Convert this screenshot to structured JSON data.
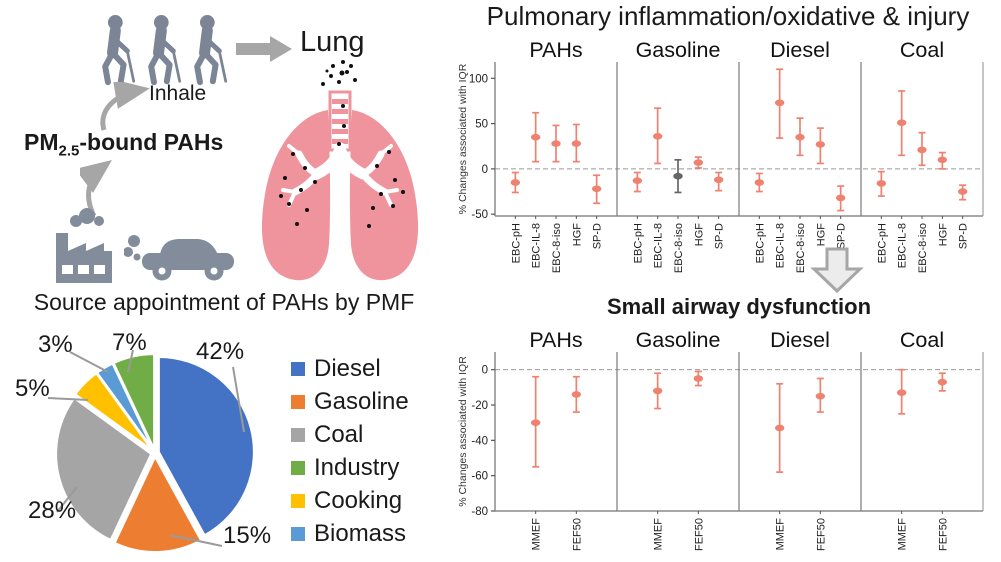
{
  "colors": {
    "salmon": "#EF8170",
    "gray_marker": "#666666",
    "icon_gray": "#7C8595",
    "machine_gray": "#838C9B",
    "arrow_gray": "#A6A6A6",
    "lung_pink": "#EF949C",
    "axis_gray": "#8C8C8C",
    "dash_gray": "#999999"
  },
  "left_panel": {
    "inhale_label": "Inhale",
    "pm_label_base": "PM",
    "pm_label_sub": "2.5",
    "pm_label_rest": "-bound PAHs",
    "lung_label": "Lung"
  },
  "chart_data": [
    {
      "type": "pie",
      "title": "Source appointment of PAHs by PMF",
      "labels": [
        "Diesel",
        "Gasoline",
        "Coal",
        "Cooking",
        "Biomass",
        "Industry"
      ],
      "values": [
        42,
        15,
        28,
        5,
        3,
        7
      ],
      "value_labels": [
        "42%",
        "15%",
        "28%",
        "5%",
        "3%",
        "7%"
      ],
      "slice_colors": [
        "#4472C4",
        "#ED7D31",
        "#A5A5A5",
        "#FFC000",
        "#5B9BD5",
        "#70AD47"
      ],
      "start_angle_deg": -90,
      "direction": "clockwise",
      "legend": [
        {
          "label": "Diesel",
          "color": "#4472C4"
        },
        {
          "label": "Gasoline",
          "color": "#ED7D31"
        },
        {
          "label": "Coal",
          "color": "#A5A5A5"
        },
        {
          "label": "Industry",
          "color": "#70AD47"
        },
        {
          "label": "Cooking",
          "color": "#FFC000"
        },
        {
          "label": "Biomass",
          "color": "#5B9BD5"
        }
      ]
    },
    {
      "type": "errorbar",
      "title": "Pulmonary inflammation/oxidative & injury",
      "ylabel": "% Changes associated with IQR",
      "yticks": [
        100,
        50,
        0,
        -50
      ],
      "ylim": [
        -52,
        118
      ],
      "zero_dashed": true,
      "panels": [
        {
          "name": "PAHs",
          "points": [
            {
              "label": "EBC-pH",
              "value": -15,
              "lo": -26,
              "hi": -4
            },
            {
              "label": "EBC-IL-8",
              "value": 35,
              "lo": 8,
              "hi": 62
            },
            {
              "label": "EBC-8-iso",
              "value": 28,
              "lo": 8,
              "hi": 48
            },
            {
              "label": "HGF",
              "value": 28,
              "lo": 8,
              "hi": 49
            },
            {
              "label": "SP-D",
              "value": -22,
              "lo": -38,
              "hi": -7
            }
          ]
        },
        {
          "name": "Gasoline",
          "points": [
            {
              "label": "EBC-pH",
              "value": -13,
              "lo": -25,
              "hi": -4
            },
            {
              "label": "EBC-IL-8",
              "value": 36,
              "lo": 6,
              "hi": 67
            },
            {
              "label": "EBC-8-iso",
              "value": -8,
              "lo": -26,
              "hi": 10,
              "color": "gray"
            },
            {
              "label": "HGF",
              "value": 7,
              "lo": 1,
              "hi": 13
            },
            {
              "label": "SP-D",
              "value": -12,
              "lo": -24,
              "hi": -4
            }
          ]
        },
        {
          "name": "Diesel",
          "points": [
            {
              "label": "EBC-pH",
              "value": -15,
              "lo": -25,
              "hi": -5
            },
            {
              "label": "EBC-IL-8",
              "value": 73,
              "lo": 34,
              "hi": 110
            },
            {
              "label": "EBC-8-iso",
              "value": 35,
              "lo": 15,
              "hi": 56
            },
            {
              "label": "HGF",
              "value": 27,
              "lo": 6,
              "hi": 45
            },
            {
              "label": "SP-D",
              "value": -32,
              "lo": -46,
              "hi": -19
            }
          ]
        },
        {
          "name": "Coal",
          "points": [
            {
              "label": "EBC-pH",
              "value": -16,
              "lo": -30,
              "hi": -3
            },
            {
              "label": "EBC-IL-8",
              "value": 51,
              "lo": 15,
              "hi": 86
            },
            {
              "label": "EBC-8-iso",
              "value": 21,
              "lo": 4,
              "hi": 40
            },
            {
              "label": "HGF",
              "value": 10,
              "lo": 0,
              "hi": 18
            },
            {
              "label": "SP-D",
              "value": -25,
              "lo": -34,
              "hi": -18
            }
          ]
        }
      ]
    },
    {
      "type": "errorbar",
      "title": "Small airway dysfunction",
      "ylabel": "% Changes associated with IQR",
      "yticks": [
        0,
        -20,
        -40,
        -60,
        -80
      ],
      "ylim": [
        -80,
        10
      ],
      "zero_dashed": true,
      "panels": [
        {
          "name": "PAHs",
          "points": [
            {
              "label": "MMEF",
              "value": -30,
              "lo": -55,
              "hi": -4
            },
            {
              "label": "FEF50",
              "value": -14,
              "lo": -24,
              "hi": -4
            }
          ]
        },
        {
          "name": "Gasoline",
          "points": [
            {
              "label": "MMEF",
              "value": -12,
              "lo": -22,
              "hi": -2
            },
            {
              "label": "FEF50",
              "value": -5,
              "lo": -9,
              "hi": -1
            }
          ]
        },
        {
          "name": "Diesel",
          "points": [
            {
              "label": "MMEF",
              "value": -33,
              "lo": -58,
              "hi": -8
            },
            {
              "label": "FEF50",
              "value": -15,
              "lo": -24,
              "hi": -5
            }
          ]
        },
        {
          "name": "Coal",
          "points": [
            {
              "label": "MMEF",
              "value": -13,
              "lo": -25,
              "hi": 0
            },
            {
              "label": "FEF50",
              "value": -7,
              "lo": -12,
              "hi": -2
            }
          ]
        }
      ]
    }
  ]
}
